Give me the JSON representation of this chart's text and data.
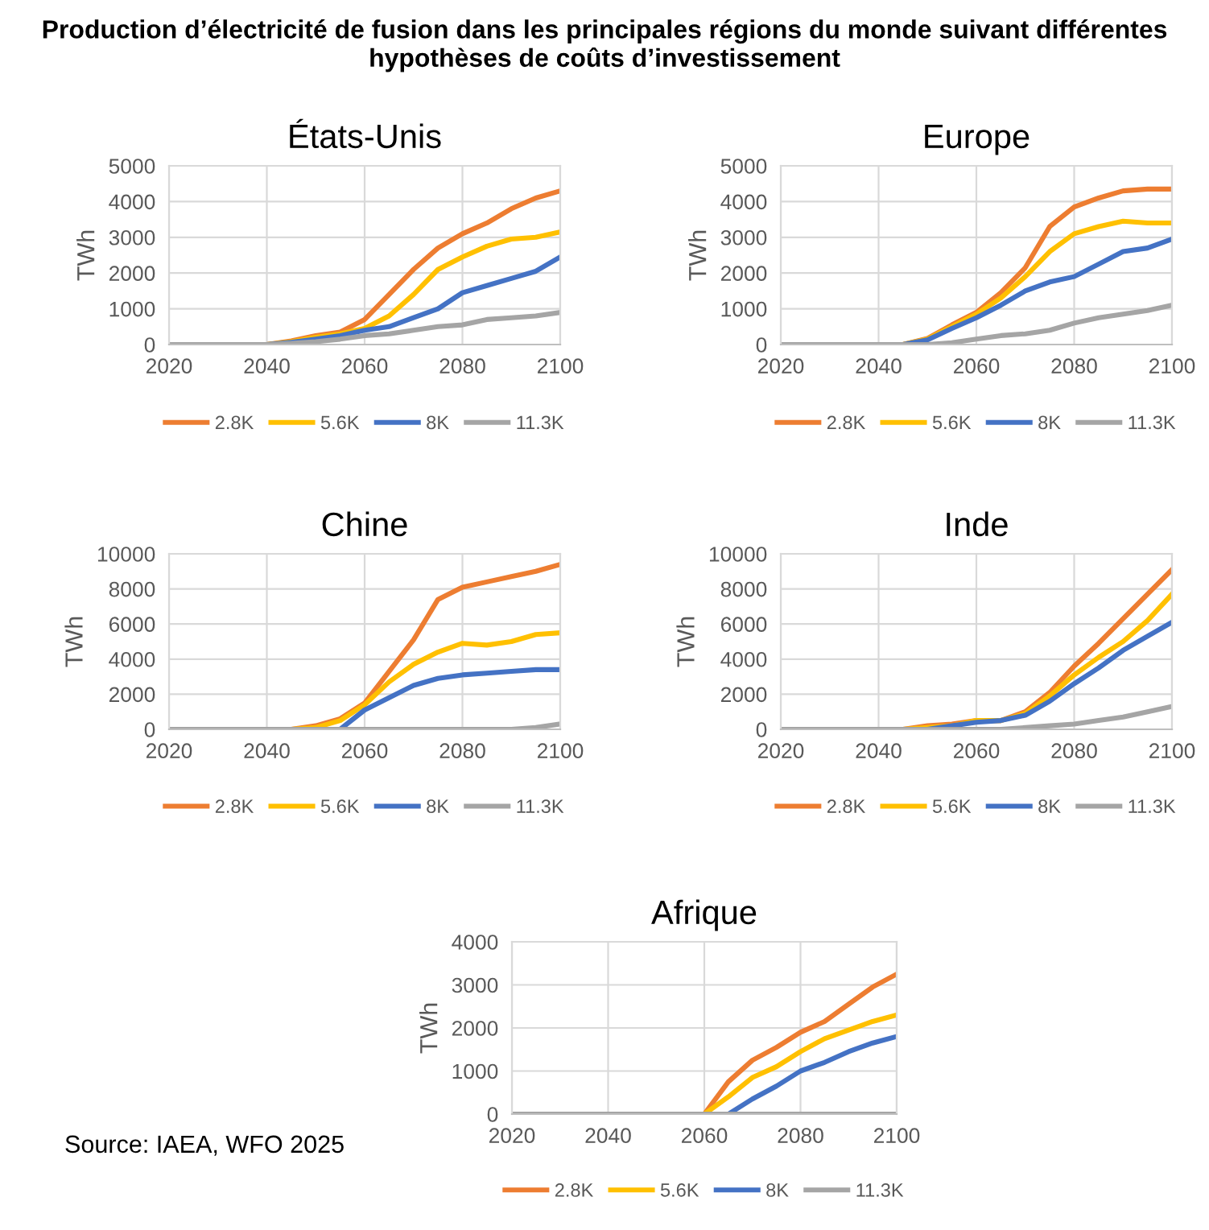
{
  "chart_data": [
    {
      "type": "line",
      "title": "États-Unis",
      "ylabel": "TWh",
      "annotations": [
        "Production d’électricité de fusion dans les principales régions du monde suivant différentes hypothèses de coûts d’investissement"
      ],
      "x": [
        2020,
        2025,
        2030,
        2035,
        2040,
        2045,
        2050,
        2055,
        2060,
        2065,
        2070,
        2075,
        2080,
        2085,
        2090,
        2095,
        2100
      ],
      "xlim": [
        2020,
        2100
      ],
      "xticks": [
        2020,
        2040,
        2060,
        2080,
        2100
      ],
      "ylim": [
        0,
        5000
      ],
      "yticks": [
        0,
        1000,
        2000,
        3000,
        4000,
        5000
      ],
      "grid": true,
      "legend": "bottom",
      "series": [
        {
          "name": "2.8K",
          "color": "#ed7d31",
          "values": [
            null,
            null,
            null,
            null,
            0,
            100,
            250,
            350,
            700,
            1400,
            2100,
            2700,
            3100,
            3400,
            3800,
            4100,
            4300
          ]
        },
        {
          "name": "5.6K",
          "color": "#ffc000",
          "values": [
            null,
            null,
            null,
            null,
            0,
            80,
            200,
            300,
            450,
            800,
            1400,
            2100,
            2450,
            2750,
            2950,
            3000,
            3150
          ]
        },
        {
          "name": "8K",
          "color": "#4472c4",
          "values": [
            null,
            null,
            null,
            null,
            0,
            60,
            150,
            250,
            400,
            500,
            750,
            1000,
            1450,
            1650,
            1850,
            2050,
            2450
          ]
        },
        {
          "name": "11.3K",
          "color": "#a5a5a5",
          "values": [
            0,
            0,
            0,
            0,
            0,
            30,
            80,
            150,
            250,
            300,
            400,
            500,
            550,
            700,
            750,
            800,
            900
          ]
        }
      ]
    },
    {
      "type": "line",
      "title": "Europe",
      "ylabel": "TWh",
      "x": [
        2020,
        2025,
        2030,
        2035,
        2040,
        2045,
        2050,
        2055,
        2060,
        2065,
        2070,
        2075,
        2080,
        2085,
        2090,
        2095,
        2100
      ],
      "xlim": [
        2020,
        2100
      ],
      "xticks": [
        2020,
        2040,
        2060,
        2080,
        2100
      ],
      "ylim": [
        0,
        5000
      ],
      "yticks": [
        0,
        1000,
        2000,
        3000,
        4000,
        5000
      ],
      "grid": true,
      "legend": "bottom",
      "series": [
        {
          "name": "2.8K",
          "color": "#ed7d31",
          "values": [
            null,
            null,
            null,
            null,
            null,
            0,
            170,
            550,
            900,
            1450,
            2150,
            3300,
            3850,
            4100,
            4300,
            4350,
            4350
          ]
        },
        {
          "name": "5.6K",
          "color": "#ffc000",
          "values": [
            null,
            null,
            null,
            null,
            null,
            0,
            150,
            500,
            850,
            1300,
            1900,
            2600,
            3100,
            3300,
            3450,
            3400,
            3400
          ]
        },
        {
          "name": "8K",
          "color": "#4472c4",
          "values": [
            null,
            null,
            null,
            null,
            null,
            0,
            130,
            450,
            750,
            1100,
            1500,
            1750,
            1900,
            2250,
            2600,
            2700,
            2950
          ]
        },
        {
          "name": "11.3K",
          "color": "#a5a5a5",
          "values": [
            0,
            0,
            0,
            0,
            0,
            0,
            0,
            50,
            150,
            250,
            300,
            400,
            600,
            750,
            850,
            950,
            1100
          ]
        }
      ]
    },
    {
      "type": "line",
      "title": "Chine",
      "ylabel": "TWh",
      "x": [
        2020,
        2025,
        2030,
        2035,
        2040,
        2045,
        2050,
        2055,
        2060,
        2065,
        2070,
        2075,
        2080,
        2085,
        2090,
        2095,
        2100
      ],
      "xlim": [
        2020,
        2100
      ],
      "xticks": [
        2020,
        2040,
        2060,
        2080,
        2100
      ],
      "ylim": [
        0,
        10000
      ],
      "yticks": [
        0,
        2000,
        4000,
        6000,
        8000,
        10000
      ],
      "grid": true,
      "legend": "bottom",
      "series": [
        {
          "name": "2.8K",
          "color": "#ed7d31",
          "values": [
            null,
            null,
            null,
            null,
            null,
            0,
            200,
            600,
            1500,
            3300,
            5100,
            7400,
            8100,
            8400,
            8700,
            9000,
            9400
          ]
        },
        {
          "name": "5.6K",
          "color": "#ffc000",
          "values": [
            null,
            null,
            null,
            null,
            null,
            0,
            100,
            500,
            1400,
            2700,
            3700,
            4400,
            4900,
            4800,
            5000,
            5400,
            5500
          ]
        },
        {
          "name": "8K",
          "color": "#4472c4",
          "values": [
            null,
            null,
            null,
            null,
            null,
            null,
            null,
            0,
            1100,
            1800,
            2500,
            2900,
            3100,
            3200,
            3300,
            3400,
            3400
          ]
        },
        {
          "name": "11.3K",
          "color": "#a5a5a5",
          "values": [
            0,
            0,
            0,
            0,
            0,
            0,
            0,
            0,
            0,
            0,
            0,
            0,
            0,
            0,
            0,
            100,
            300
          ]
        }
      ]
    },
    {
      "type": "line",
      "title": "Inde",
      "ylabel": "TWh",
      "x": [
        2020,
        2025,
        2030,
        2035,
        2040,
        2045,
        2050,
        2055,
        2060,
        2065,
        2070,
        2075,
        2080,
        2085,
        2090,
        2095,
        2100
      ],
      "xlim": [
        2020,
        2100
      ],
      "xticks": [
        2020,
        2040,
        2060,
        2080,
        2100
      ],
      "ylim": [
        0,
        10000
      ],
      "yticks": [
        0,
        2000,
        4000,
        6000,
        8000,
        10000
      ],
      "grid": true,
      "legend": "bottom",
      "series": [
        {
          "name": "2.8K",
          "color": "#ed7d31",
          "values": [
            null,
            null,
            null,
            null,
            null,
            0,
            200,
            300,
            500,
            500,
            1000,
            2100,
            3600,
            4900,
            6300,
            7700,
            9100
          ]
        },
        {
          "name": "5.6K",
          "color": "#ffc000",
          "values": [
            null,
            null,
            null,
            null,
            null,
            0,
            100,
            200,
            500,
            500,
            900,
            1900,
            3100,
            4100,
            5000,
            6200,
            7700
          ]
        },
        {
          "name": "8K",
          "color": "#4472c4",
          "values": [
            null,
            null,
            null,
            null,
            null,
            null,
            0,
            200,
            400,
            500,
            800,
            1600,
            2600,
            3500,
            4500,
            5300,
            6100
          ]
        },
        {
          "name": "11.3K",
          "color": "#a5a5a5",
          "values": [
            0,
            0,
            0,
            0,
            0,
            0,
            0,
            0,
            0,
            0,
            100,
            200,
            300,
            500,
            700,
            1000,
            1300
          ]
        }
      ]
    },
    {
      "type": "line",
      "title": "Afrique",
      "ylabel": "TWh",
      "annotations": [
        "Source: IAEA, WFO 2025"
      ],
      "x": [
        2020,
        2025,
        2030,
        2035,
        2040,
        2045,
        2050,
        2055,
        2060,
        2065,
        2070,
        2075,
        2080,
        2085,
        2090,
        2095,
        2100
      ],
      "xlim": [
        2020,
        2100
      ],
      "xticks": [
        2020,
        2040,
        2060,
        2080,
        2100
      ],
      "ylim": [
        0,
        4000
      ],
      "yticks": [
        0,
        1000,
        2000,
        3000,
        4000
      ],
      "grid": true,
      "legend": "bottom",
      "series": [
        {
          "name": "2.8K",
          "color": "#ed7d31",
          "values": [
            null,
            null,
            null,
            null,
            null,
            null,
            null,
            null,
            0,
            750,
            1250,
            1550,
            1900,
            2150,
            2550,
            2950,
            3250
          ]
        },
        {
          "name": "5.6K",
          "color": "#ffc000",
          "values": [
            null,
            null,
            null,
            null,
            null,
            null,
            null,
            null,
            0,
            400,
            850,
            1100,
            1450,
            1750,
            1950,
            2150,
            2300
          ]
        },
        {
          "name": "8K",
          "color": "#4472c4",
          "values": [
            null,
            null,
            null,
            null,
            null,
            null,
            null,
            null,
            null,
            0,
            350,
            650,
            1000,
            1200,
            1450,
            1650,
            1800
          ]
        },
        {
          "name": "11.3K",
          "color": "#a5a5a5",
          "values": [
            0,
            0,
            0,
            0,
            0,
            0,
            0,
            0,
            0,
            0,
            0,
            0,
            0,
            0,
            0,
            0,
            0
          ]
        }
      ]
    }
  ]
}
